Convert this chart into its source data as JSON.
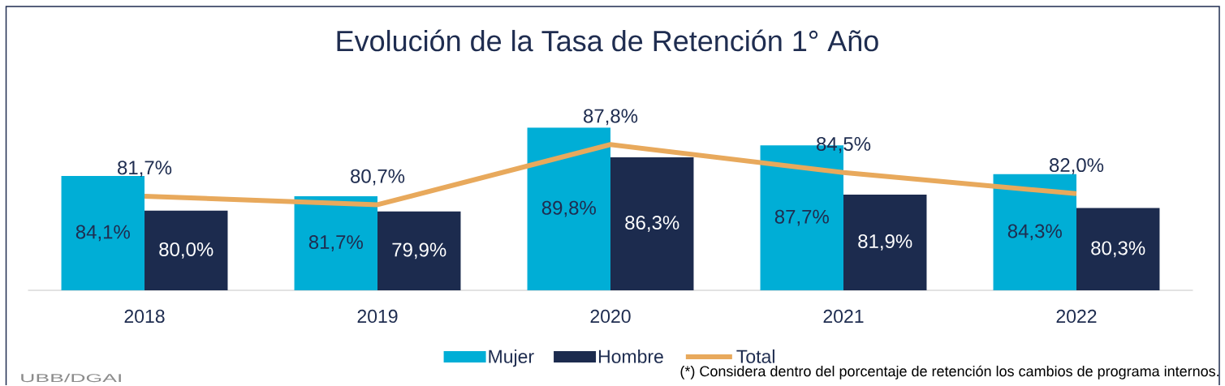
{
  "chart_data": {
    "type": "bar",
    "title": "Evolución de la Tasa de Retención 1° Año",
    "categories": [
      "2018",
      "2019",
      "2020",
      "2021",
      "2022"
    ],
    "series": [
      {
        "name": "Mujer",
        "color": "#00aed6",
        "values": [
          84.1,
          81.7,
          89.8,
          87.7,
          84.3
        ],
        "value_labels": [
          "84,1%",
          "81,7%",
          "89,8%",
          "87,7%",
          "84,3%"
        ]
      },
      {
        "name": "Hombre",
        "color": "#1c2b4e",
        "values": [
          80.0,
          79.9,
          86.3,
          81.9,
          80.3
        ],
        "value_labels": [
          "80,0%",
          "79,9%",
          "86,3%",
          "81,9%",
          "80,3%"
        ]
      },
      {
        "name": "Total",
        "type": "line",
        "color": "#e8a95c",
        "values": [
          81.7,
          80.7,
          87.8,
          84.5,
          82.0
        ],
        "value_labels": [
          "81,7%",
          "80,7%",
          "87,8%",
          "84,5%",
          "82,0%"
        ]
      }
    ],
    "ylim": [
      70.6,
      89.8
    ],
    "tick_labels": "x",
    "legend": "bottom",
    "annotations": [
      "(*) Considera dentro del porcentaje de retención los cambios de programa internos.",
      "UBB/DGAI"
    ]
  }
}
